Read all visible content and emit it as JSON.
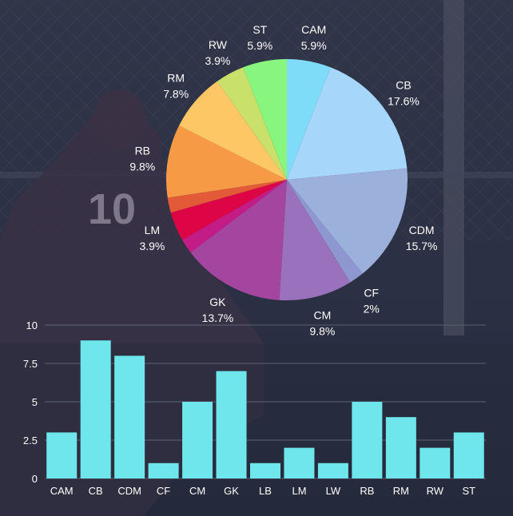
{
  "colors": {
    "background": "#2a3045",
    "bar_fill": "#6ee6ec",
    "grid": "#5b6272",
    "text": "#ffffff"
  },
  "chart_data": [
    {
      "type": "pie",
      "categories": [
        "CAM",
        "CB",
        "CDM",
        "CF",
        "CM",
        "GK",
        "LB",
        "LM",
        "LW",
        "RB",
        "RM",
        "RW",
        "ST"
      ],
      "values": [
        5.9,
        17.6,
        15.7,
        2.0,
        9.8,
        13.7,
        2.0,
        3.9,
        2.0,
        9.8,
        7.8,
        3.9,
        5.9
      ],
      "labels": [
        "5.9%",
        "17.6%",
        "15.7%",
        "2%",
        "9.8%",
        "13.7%",
        "",
        "3.9%",
        "",
        "9.8%",
        "7.8%",
        "3.9%",
        "5.9%"
      ],
      "slice_colors": [
        "#7fdcf8",
        "#a7d6fb",
        "#9bb1dc",
        "#8e97cf",
        "#9a71bc",
        "#a4469f",
        "#c41c86",
        "#de0547",
        "#e25a38",
        "#f69a45",
        "#fdc765",
        "#c9e06a",
        "#88f57e"
      ]
    },
    {
      "type": "bar",
      "categories": [
        "CAM",
        "CB",
        "CDM",
        "CF",
        "CM",
        "GK",
        "LB",
        "LM",
        "LW",
        "RB",
        "RM",
        "RW",
        "ST"
      ],
      "values": [
        3,
        9,
        8,
        1,
        5,
        7,
        1,
        2,
        1,
        5,
        4,
        2,
        3
      ],
      "ylim": [
        0,
        10
      ],
      "yticks": [
        0,
        2.5,
        5,
        7.5,
        10
      ],
      "ytick_labels": [
        "0",
        "2.5",
        "5",
        "7.5",
        "10"
      ],
      "grid": true
    }
  ]
}
